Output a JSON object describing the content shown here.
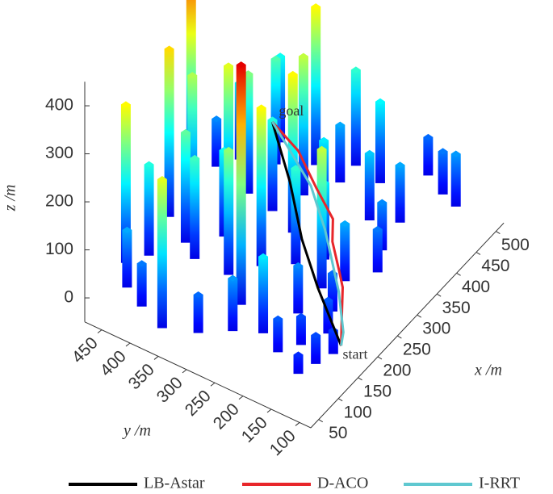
{
  "chart_data": {
    "type": "bar3d",
    "x_label": "x /m",
    "y_label": "y /m",
    "z_label": "z /m",
    "xlim": [
      30,
      520
    ],
    "ylim": [
      80,
      480
    ],
    "zlim": [
      -50,
      450
    ],
    "xticks": [
      50,
      100,
      150,
      200,
      250,
      300,
      350,
      400,
      450,
      500
    ],
    "yticks": [
      100,
      150,
      200,
      250,
      300,
      350,
      400,
      450
    ],
    "zticks": [
      0,
      100,
      200,
      300,
      400
    ],
    "obstacles": {
      "x": [
        470,
        480,
        500,
        450,
        460,
        430,
        400,
        440,
        380,
        350,
        300,
        260,
        230,
        200,
        150,
        120,
        80,
        60,
        40,
        60,
        90,
        110,
        140,
        180,
        220,
        250,
        280,
        300,
        320,
        350,
        380,
        400,
        340,
        300,
        260,
        230,
        200,
        170,
        120,
        90,
        70,
        100,
        130,
        160,
        370,
        330,
        420,
        240,
        180,
        280
      ],
      "y": [
        130,
        160,
        200,
        250,
        300,
        350,
        400,
        420,
        450,
        470,
        480,
        450,
        470,
        420,
        450,
        470,
        440,
        400,
        350,
        300,
        260,
        220,
        280,
        330,
        300,
        260,
        230,
        300,
        350,
        280,
        220,
        180,
        170,
        150,
        180,
        200,
        160,
        200,
        160,
        180,
        130,
        120,
        110,
        140,
        330,
        400,
        300,
        380,
        390,
        400
      ],
      "height": [
        110,
        90,
        80,
        170,
        200,
        330,
        220,
        180,
        160,
        100,
        420,
        280,
        350,
        230,
        190,
        330,
        120,
        90,
        310,
        80,
        110,
        160,
        500,
        260,
        330,
        200,
        160,
        330,
        190,
        160,
        140,
        120,
        100,
        90,
        120,
        290,
        80,
        100,
        60,
        70,
        40,
        60,
        50,
        70,
        290,
        250,
        120,
        180,
        210,
        310
      ]
    },
    "series": [
      {
        "name": "LB-Astar",
        "color": "#000000",
        "x": [
          150,
          220,
          280,
          350,
          420
        ],
        "y": [
          110,
          200,
          270,
          340,
          420
        ],
        "z": [
          0,
          10,
          20,
          40,
          60
        ]
      },
      {
        "name": "D-ACO",
        "color": "#e8262a",
        "x": [
          150,
          180,
          240,
          260,
          300,
          330,
          360,
          400,
          420
        ],
        "y": [
          110,
          130,
          170,
          190,
          230,
          250,
          300,
          360,
          420
        ],
        "z": [
          0,
          10,
          10,
          15,
          20,
          30,
          40,
          50,
          60
        ]
      },
      {
        "name": "I-RRT",
        "color": "#5fc8d0",
        "x": [
          150,
          170,
          230,
          280,
          310,
          360,
          400,
          420
        ],
        "y": [
          110,
          120,
          170,
          220,
          250,
          310,
          380,
          420
        ],
        "z": [
          0,
          5,
          10,
          20,
          25,
          40,
          50,
          60
        ]
      }
    ],
    "annotations": [
      "start",
      "goal"
    ],
    "legend": "bottom"
  }
}
